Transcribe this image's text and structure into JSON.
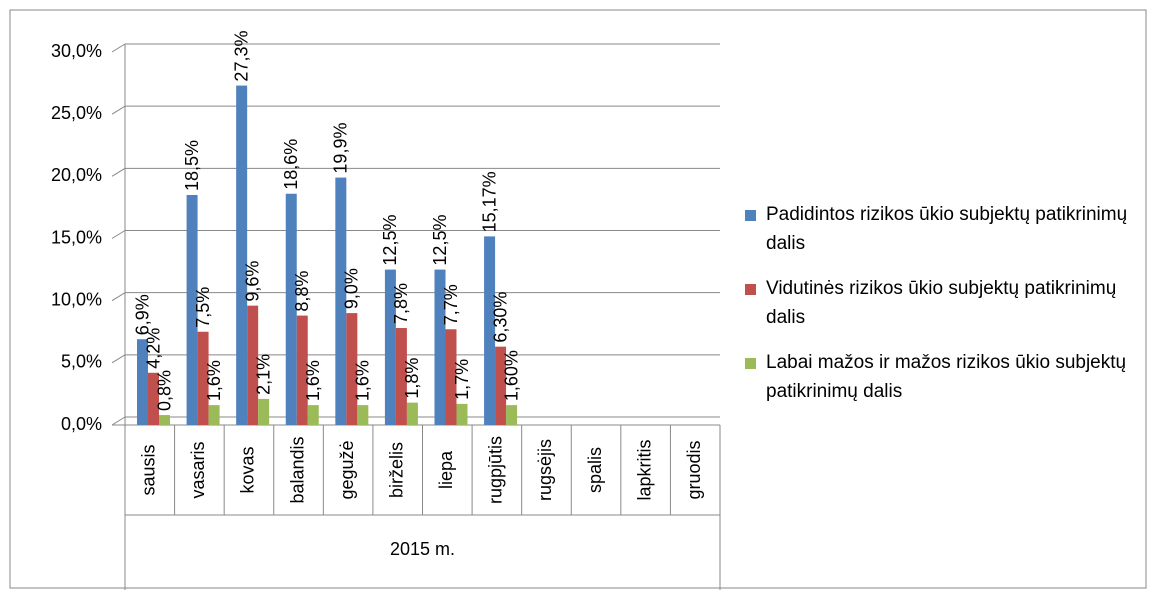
{
  "chart_data": {
    "type": "bar",
    "categories": [
      "sausis",
      "vasaris",
      "kovas",
      "balandis",
      "gegužė",
      "birželis",
      "liepa",
      "rugpjūtis",
      "rugsėjis",
      "spalis",
      "lapkritis",
      "gruodis"
    ],
    "category_group": "2015 m.",
    "series": [
      {
        "name": "Padidintos rizikos ūkio subjektų patikrinimų dalis",
        "color": "#4f81bd",
        "values": [
          6.9,
          18.5,
          27.3,
          18.6,
          19.9,
          12.5,
          12.5,
          15.17,
          null,
          null,
          null,
          null
        ],
        "value_labels": [
          "6,9%",
          "18,5%",
          "27,3%",
          "18,6%",
          "19,9%",
          "12,5%",
          "12,5%",
          "15,17%",
          null,
          null,
          null,
          null
        ]
      },
      {
        "name": "Vidutinės rizikos ūkio subjektų patikrinimų dalis",
        "color": "#c0504d",
        "values": [
          4.2,
          7.5,
          9.6,
          8.8,
          9.0,
          7.8,
          7.7,
          6.3,
          null,
          null,
          null,
          null
        ],
        "value_labels": [
          "4,2%",
          "7,5%",
          "9,6%",
          "8,8%",
          "9,0%",
          "7,8%",
          "7,7%",
          "6,30%",
          null,
          null,
          null,
          null
        ]
      },
      {
        "name": "Labai mažos ir mažos rizikos ūkio subjektų patikrinimų dalis",
        "color": "#9bbb59",
        "values": [
          0.8,
          1.6,
          2.1,
          1.6,
          1.6,
          1.8,
          1.7,
          1.6,
          null,
          null,
          null,
          null
        ],
        "value_labels": [
          "0,8%",
          "1,6%",
          "2,1%",
          "1,6%",
          "1,6%",
          "1,8%",
          "1,7%",
          "1,60%",
          null,
          null,
          null,
          null
        ]
      }
    ],
    "ylim": [
      0,
      30
    ],
    "yticks": [
      {
        "value": 0,
        "label": "0,0%"
      },
      {
        "value": 5,
        "label": "5,0%"
      },
      {
        "value": 10,
        "label": "10,0%"
      },
      {
        "value": 15,
        "label": "15,0%"
      },
      {
        "value": 20,
        "label": "20,0%"
      },
      {
        "value": 25,
        "label": "25,0%"
      },
      {
        "value": 30,
        "label": "30,0%"
      }
    ],
    "grid": true,
    "legend": "right"
  }
}
